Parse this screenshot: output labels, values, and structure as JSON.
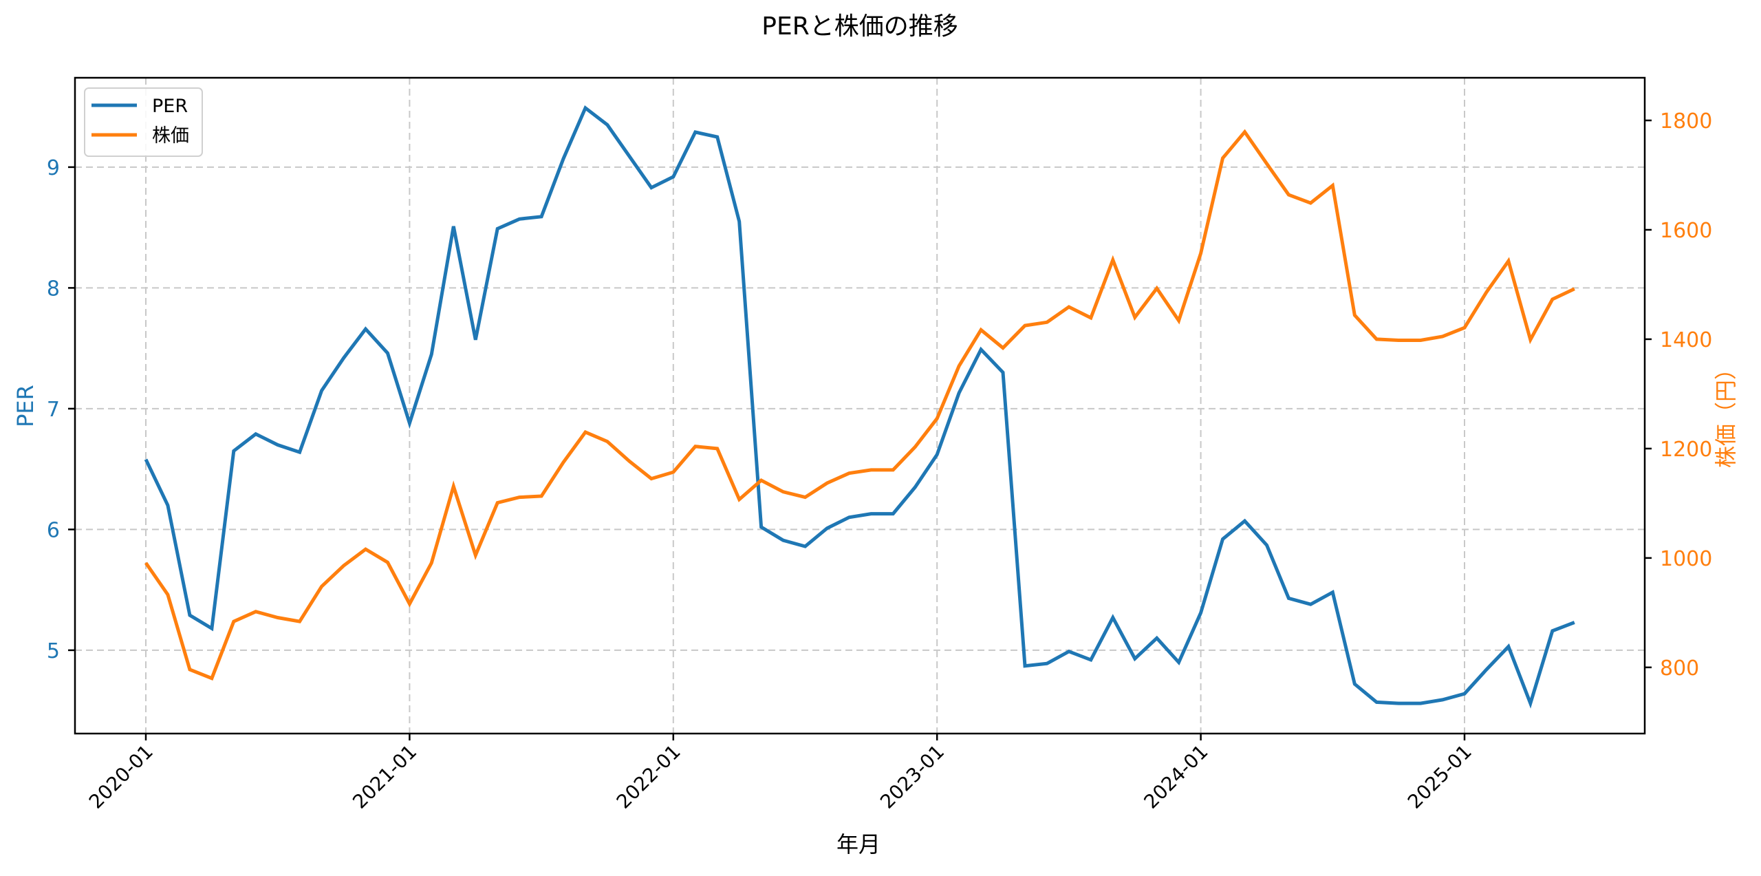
{
  "chart_data": {
    "type": "line",
    "title": "PERと株価の推移",
    "xlabel": "年月",
    "ylabel": "PER",
    "ylabel_right": "株価（円）",
    "colors": {
      "PER": "#1f77b4",
      "株価": "#ff7f0e",
      "grid": "#c8c8c8",
      "axis": "#000000"
    },
    "x": [
      "2020-01",
      "2020-02",
      "2020-03",
      "2020-04",
      "2020-05",
      "2020-06",
      "2020-07",
      "2020-08",
      "2020-09",
      "2020-10",
      "2020-11",
      "2020-12",
      "2021-01",
      "2021-02",
      "2021-03",
      "2021-04",
      "2021-05",
      "2021-06",
      "2021-07",
      "2021-08",
      "2021-09",
      "2021-10",
      "2021-11",
      "2021-12",
      "2022-01",
      "2022-02",
      "2022-03",
      "2022-04",
      "2022-05",
      "2022-06",
      "2022-07",
      "2022-08",
      "2022-09",
      "2022-10",
      "2022-11",
      "2022-12",
      "2023-01",
      "2023-02",
      "2023-03",
      "2023-04",
      "2023-05",
      "2023-06",
      "2023-07",
      "2023-08",
      "2023-09",
      "2023-10",
      "2023-11",
      "2023-12",
      "2024-01",
      "2024-02",
      "2024-03",
      "2024-04",
      "2024-05",
      "2024-06",
      "2024-07",
      "2024-08",
      "2024-09",
      "2024-10",
      "2024-11",
      "2024-12",
      "2025-01",
      "2025-02",
      "2025-03",
      "2025-04",
      "2025-05",
      "2025-06"
    ],
    "series": [
      {
        "name": "PER",
        "axis": "left",
        "values": [
          6.58,
          6.2,
          5.29,
          5.18,
          6.65,
          6.79,
          6.7,
          6.64,
          7.15,
          7.42,
          7.66,
          7.46,
          6.88,
          7.45,
          8.51,
          7.57,
          8.49,
          8.57,
          8.59,
          9.07,
          9.49,
          9.35,
          9.09,
          8.83,
          8.92,
          9.29,
          9.25,
          8.55,
          6.02,
          5.91,
          5.86,
          6.01,
          6.1,
          6.13,
          6.13,
          6.35,
          6.62,
          7.13,
          7.49,
          7.3,
          4.87,
          4.89,
          4.99,
          4.92,
          5.27,
          4.93,
          5.1,
          4.9,
          5.31,
          5.92,
          6.07,
          5.87,
          5.43,
          5.38,
          5.48,
          4.72,
          4.57,
          4.56,
          4.56,
          4.59,
          4.64,
          4.84,
          5.03,
          4.56,
          5.16,
          5.23
        ]
      },
      {
        "name": "株価",
        "axis": "right",
        "values": [
          991,
          933,
          796,
          780,
          884,
          902,
          891,
          884,
          948,
          986,
          1016,
          992,
          916,
          991,
          1131,
          1005,
          1101,
          1111,
          1113,
          1175,
          1230,
          1213,
          1177,
          1145,
          1157,
          1204,
          1200,
          1107,
          1142,
          1121,
          1111,
          1137,
          1155,
          1161,
          1161,
          1203,
          1255,
          1351,
          1417,
          1384,
          1425,
          1431,
          1459,
          1439,
          1545,
          1440,
          1493,
          1434,
          1557,
          1731,
          1779,
          1721,
          1664,
          1649,
          1681,
          1444,
          1400,
          1398,
          1398,
          1405,
          1421,
          1486,
          1543,
          1399,
          1473,
          1492
        ]
      }
    ],
    "x_ticks": [
      "2020-01",
      "2021-01",
      "2022-01",
      "2023-01",
      "2024-01",
      "2025-01"
    ],
    "y_ticks_left": [
      5,
      6,
      7,
      8,
      9
    ],
    "y_ticks_right": [
      800,
      1000,
      1200,
      1400,
      1600,
      1800
    ],
    "ylim_left": [
      4.31,
      9.74
    ],
    "ylim_right": [
      679,
      1878
    ],
    "grid": true,
    "grid_style": "dashed",
    "legend_position": "upper left",
    "legend": [
      "PER",
      "株価"
    ]
  }
}
